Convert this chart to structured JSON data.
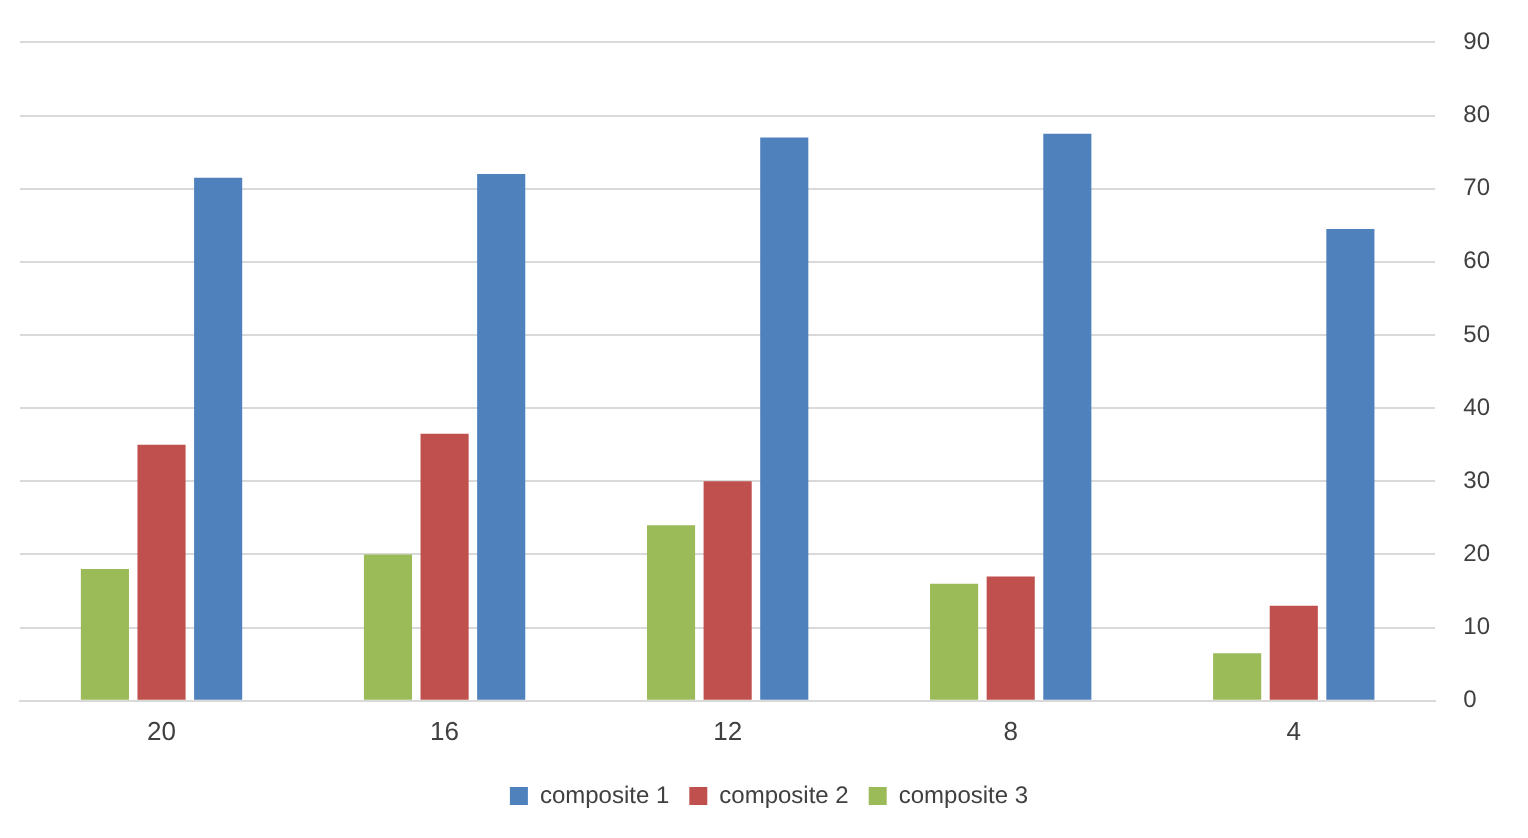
{
  "chart_data": {
    "type": "bar",
    "categories": [
      "20",
      "16",
      "12",
      "8",
      "4"
    ],
    "series": [
      {
        "name": "composite 3",
        "color": "#9bbb59",
        "values": [
          18,
          20,
          24,
          16,
          6.5
        ]
      },
      {
        "name": "composite 2",
        "color": "#c0504d",
        "values": [
          35,
          36.5,
          30,
          17,
          13
        ]
      },
      {
        "name": "composite 1",
        "color": "#4f81bd",
        "values": [
          71.5,
          72,
          77,
          77.5,
          64.5
        ]
      }
    ],
    "ylim": [
      0,
      90
    ],
    "yticks": [
      0,
      10,
      20,
      30,
      40,
      50,
      60,
      70,
      80,
      90
    ],
    "grid": "y",
    "legend": "bottom"
  }
}
